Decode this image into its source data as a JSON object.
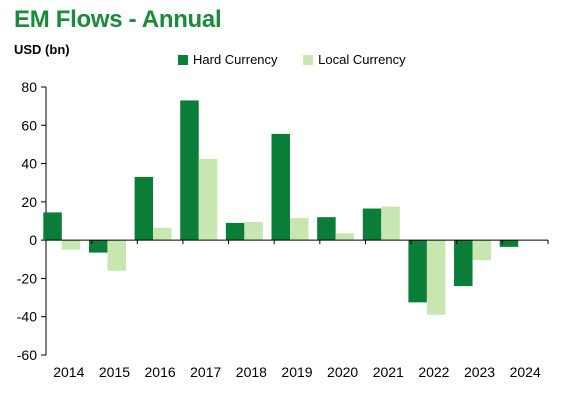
{
  "chart_data": {
    "type": "bar",
    "title": "EM Flows - Annual",
    "ylabel": "USD (bn)",
    "xlabel": "",
    "categories": [
      "2014",
      "2015",
      "2016",
      "2017",
      "2018",
      "2019",
      "2020",
      "2021",
      "2022",
      "2023",
      "2024"
    ],
    "series": [
      {
        "name": "Hard Currency",
        "color": "#0a7d38",
        "values": [
          14.5,
          -6.5,
          33,
          73,
          9,
          55.5,
          12,
          16.5,
          -32.5,
          -24,
          -3.5
        ]
      },
      {
        "name": "Local Currency",
        "color": "#c8e6b0",
        "values": [
          -5,
          -16,
          6.5,
          42.5,
          9.5,
          11.5,
          3.5,
          17.5,
          -39,
          -10.5,
          0
        ]
      }
    ],
    "ylim": [
      -60,
      80
    ],
    "yticks": [
      -60,
      -40,
      -20,
      0,
      20,
      40,
      60,
      80
    ],
    "grid": false,
    "legend_position": "top"
  }
}
